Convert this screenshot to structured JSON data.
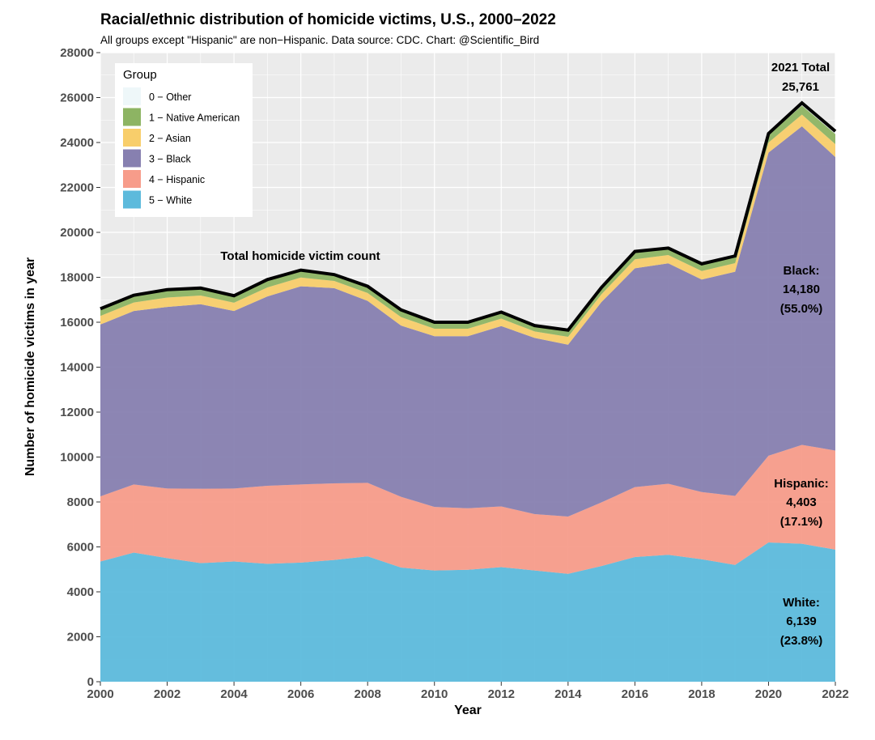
{
  "chart_data": {
    "type": "area",
    "stacked": true,
    "title": "Racial/ethnic distribution of homicide victims, U.S., 2000–2022",
    "subtitle": "All groups except \"Hispanic\" are non−Hispanic. Data source: CDC. Chart: @Scientific_Bird",
    "xlabel": "Year",
    "ylabel": "Number of homicide victims in year",
    "xlim": [
      2000,
      2022
    ],
    "ylim": [
      0,
      28000
    ],
    "x_ticks": [
      "2000",
      "2002",
      "2004",
      "2006",
      "2008",
      "2010",
      "2012",
      "2014",
      "2016",
      "2018",
      "2020",
      "2022"
    ],
    "y_ticks": [
      "0",
      "2000",
      "4000",
      "6000",
      "8000",
      "10000",
      "12000",
      "14000",
      "16000",
      "18000",
      "20000",
      "22000",
      "24000",
      "26000",
      "28000"
    ],
    "grid": true,
    "legend": {
      "title": "Group",
      "placement": "top-left"
    },
    "x": [
      2000,
      2001,
      2002,
      2003,
      2004,
      2005,
      2006,
      2007,
      2008,
      2009,
      2010,
      2011,
      2012,
      2013,
      2014,
      2015,
      2016,
      2017,
      2018,
      2019,
      2020,
      2021,
      2022
    ],
    "series": [
      {
        "name": "5 − White",
        "color": "#5DBADC",
        "values": [
          5350,
          5750,
          5500,
          5280,
          5350,
          5250,
          5300,
          5420,
          5580,
          5080,
          4950,
          4980,
          5100,
          4950,
          4800,
          5150,
          5550,
          5650,
          5450,
          5200,
          6200,
          6139,
          5880
        ]
      },
      {
        "name": "4 − Hispanic",
        "color": "#F79C8A",
        "values": [
          2900,
          3030,
          3100,
          3310,
          3250,
          3470,
          3480,
          3410,
          3270,
          3150,
          2830,
          2740,
          2700,
          2510,
          2550,
          2830,
          3110,
          3160,
          2990,
          3070,
          3860,
          4403,
          4410
        ]
      },
      {
        "name": "3 − Black",
        "color": "#8780B0",
        "values": [
          7650,
          7720,
          8080,
          8210,
          7900,
          8430,
          8820,
          8690,
          8100,
          7620,
          7600,
          7660,
          8030,
          7840,
          7650,
          8920,
          9740,
          9810,
          9460,
          9980,
          13490,
          14180,
          13060
        ]
      },
      {
        "name": "2 − Asian",
        "color": "#F8CE6B",
        "values": [
          380,
          380,
          420,
          390,
          370,
          400,
          390,
          320,
          350,
          380,
          330,
          330,
          330,
          290,
          350,
          350,
          400,
          370,
          380,
          380,
          450,
          520,
          580
        ]
      },
      {
        "name": "1 − Native American",
        "color": "#8DB463",
        "values": [
          260,
          260,
          290,
          270,
          250,
          290,
          270,
          220,
          240,
          260,
          230,
          230,
          230,
          200,
          240,
          240,
          290,
          250,
          260,
          260,
          340,
          400,
          450
        ]
      },
      {
        "name": "0 − Other",
        "color": "#EEF7F9",
        "values": [
          60,
          60,
          60,
          60,
          60,
          60,
          60,
          60,
          60,
          60,
          60,
          60,
          60,
          60,
          60,
          60,
          60,
          60,
          60,
          60,
          60,
          119,
          120
        ]
      }
    ],
    "total": {
      "name": "Total homicide victim count",
      "color": "#000000",
      "values": [
        16600,
        17200,
        17450,
        17520,
        17180,
        17900,
        18320,
        18120,
        17600,
        16550,
        16000,
        16000,
        16450,
        15850,
        15650,
        17550,
        19150,
        19300,
        18600,
        18950,
        24400,
        25761,
        24500
      ]
    },
    "annotations": {
      "total_label": "Total homicide victim count",
      "total_2021_title": "2021 Total",
      "total_2021_value": "25,761",
      "black_name": "Black:",
      "black_value": "14,180",
      "black_pct": "(55.0%)",
      "hispanic_name": "Hispanic:",
      "hispanic_value": "4,403",
      "hispanic_pct": "(17.1%)",
      "white_name": "White:",
      "white_value": "6,139",
      "white_pct": "(23.8%)"
    }
  }
}
